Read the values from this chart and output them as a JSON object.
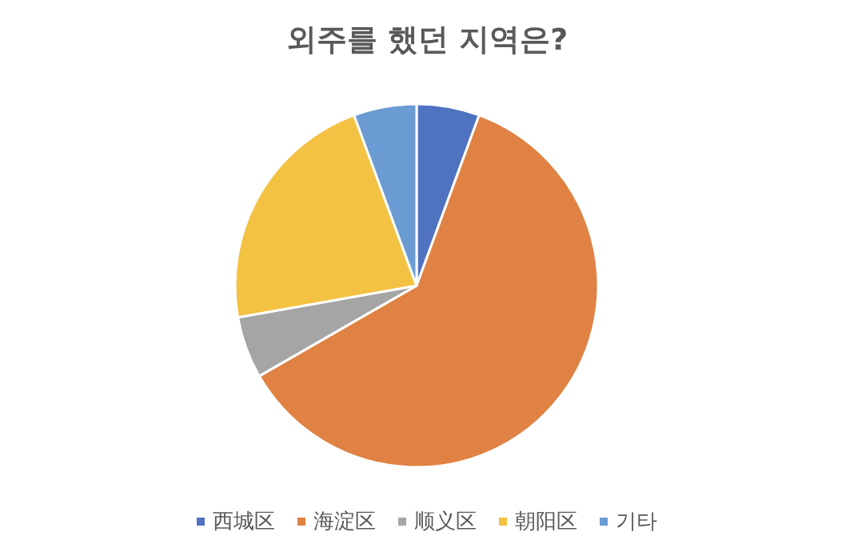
{
  "chart_data": {
    "type": "pie",
    "title": "외주를 했던 지역은?",
    "categories": [
      "西城区",
      "海淀区",
      "顺义区",
      "朝阳区",
      "기타"
    ],
    "values": [
      5.6,
      61.1,
      5.5,
      22.2,
      5.6
    ],
    "colors": [
      "#4f72c1",
      "#df8243",
      "#a5a5a5",
      "#f4c242",
      "#6a9bd2"
    ],
    "legend": "bottom"
  }
}
